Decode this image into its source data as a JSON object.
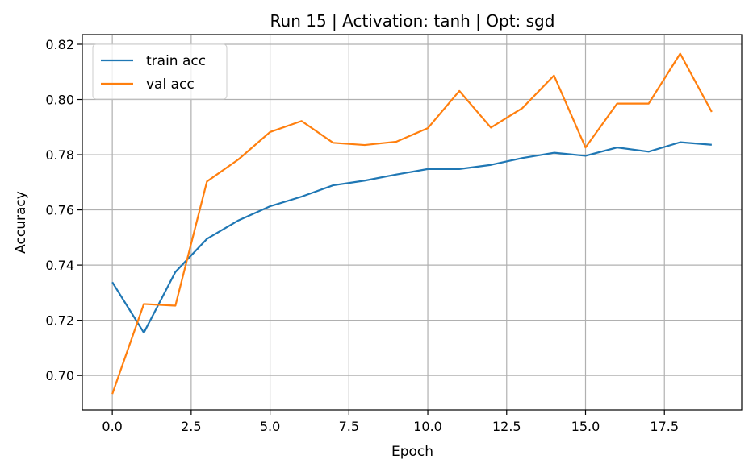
{
  "chart_data": {
    "type": "line",
    "title": "Run 15 | Activation: tanh | Opt: sgd",
    "xlabel": "Epoch",
    "ylabel": "Accuracy",
    "xlim": [
      -0.95,
      19.95
    ],
    "ylim": [
      0.6875,
      0.8235
    ],
    "xticks": [
      0.0,
      2.5,
      5.0,
      7.5,
      10.0,
      12.5,
      15.0,
      17.5
    ],
    "xtick_labels": [
      "0.0",
      "2.5",
      "5.0",
      "7.5",
      "10.0",
      "12.5",
      "15.0",
      "17.5"
    ],
    "yticks": [
      0.7,
      0.72,
      0.74,
      0.76,
      0.78,
      0.8,
      0.82
    ],
    "ytick_labels": [
      "0.70",
      "0.72",
      "0.74",
      "0.76",
      "0.78",
      "0.80",
      "0.82"
    ],
    "grid": true,
    "legend_position": "top-left",
    "x": [
      0,
      1,
      2,
      3,
      4,
      5,
      6,
      7,
      8,
      9,
      10,
      11,
      12,
      13,
      14,
      15,
      16,
      17,
      18,
      19
    ],
    "series": [
      {
        "name": "train acc",
        "color": "#1f77b4",
        "values": [
          0.7338,
          0.7155,
          0.7375,
          0.7495,
          0.7562,
          0.7613,
          0.7648,
          0.7689,
          0.7706,
          0.7728,
          0.7748,
          0.7748,
          0.7763,
          0.7788,
          0.7807,
          0.7796,
          0.7826,
          0.7811,
          0.7845,
          0.7836
        ]
      },
      {
        "name": "val acc",
        "color": "#ff7f0e",
        "values": [
          0.6933,
          0.7259,
          0.7253,
          0.7703,
          0.7783,
          0.7882,
          0.7922,
          0.7843,
          0.7835,
          0.7847,
          0.7896,
          0.8031,
          0.7898,
          0.7969,
          0.8087,
          0.7826,
          0.7985,
          0.7985,
          0.8166,
          0.7955
        ]
      }
    ]
  }
}
